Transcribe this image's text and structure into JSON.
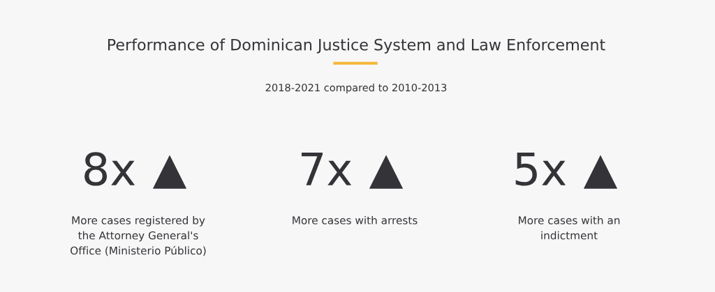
{
  "chart_data": {
    "type": "other",
    "title": "Performance of Dominican Justice System and Law Enforcement",
    "subtitle": "2018-2021 compared to 2010-2013",
    "categories": [
      "More cases registered by\nthe Attorney General's\nOffice (Ministerio Público)",
      "More cases with arrests",
      "More cases with an\nindictment"
    ],
    "values": [
      8,
      7,
      5
    ],
    "value_labels": [
      "8x",
      "7x",
      "5x"
    ],
    "color": "#333338"
  }
}
